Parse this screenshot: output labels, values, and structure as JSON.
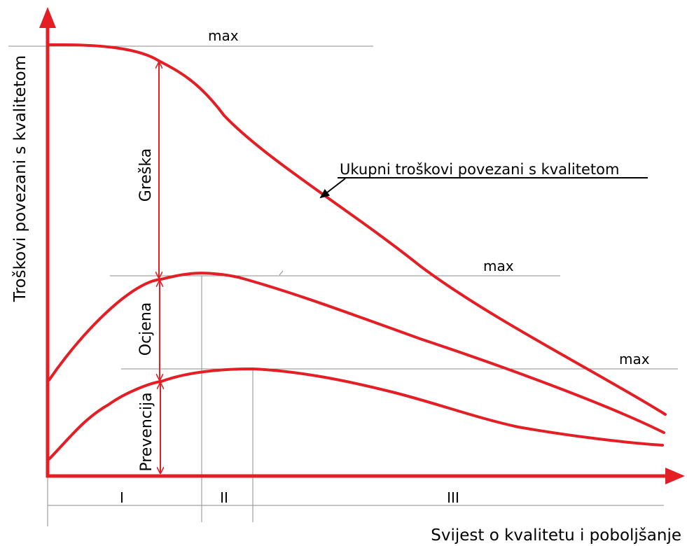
{
  "diagram": {
    "y_axis_label": "Troškovi povezani s kvalitetom",
    "x_axis_label": "Svijest o kvalitetu i poboljšanje",
    "curve_label": "Ukupni troškovi povezani s kvalitetom",
    "max_labels": [
      "max",
      "max",
      "max"
    ],
    "component_labels": {
      "error": "Greška",
      "appraisal": "Ocjena",
      "prevention": "Prevencija"
    },
    "zone_labels": [
      "I",
      "II",
      "III"
    ],
    "colors": {
      "curve": "#e31e24",
      "guide": "#8c8c8c",
      "text": "#000000",
      "background": "#ffffff"
    }
  }
}
